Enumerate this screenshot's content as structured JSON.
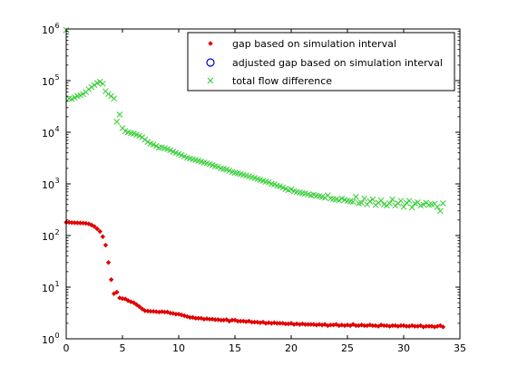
{
  "chart_data": {
    "type": "scatter",
    "title": "",
    "xlabel": "",
    "ylabel": "",
    "xlim": [
      0,
      35
    ],
    "ylim": [
      1,
      1000000
    ],
    "yscale": "log",
    "grid": false,
    "legend_position": "top-right",
    "x_ticks": [
      {
        "value": 0,
        "label": "0"
      },
      {
        "value": 5,
        "label": "5"
      },
      {
        "value": 10,
        "label": "10"
      },
      {
        "value": 15,
        "label": "15"
      },
      {
        "value": 20,
        "label": "20"
      },
      {
        "value": 25,
        "label": "25"
      },
      {
        "value": 30,
        "label": "30"
      },
      {
        "value": 35,
        "label": "35"
      }
    ],
    "y_ticks": [
      {
        "value": 1,
        "base": "10",
        "exponent": "0"
      },
      {
        "value": 10,
        "base": "10",
        "exponent": "1"
      },
      {
        "value": 100,
        "base": "10",
        "exponent": "2"
      },
      {
        "value": 1000,
        "base": "10",
        "exponent": "3"
      },
      {
        "value": 10000,
        "base": "10",
        "exponent": "4"
      },
      {
        "value": 100000,
        "base": "10",
        "exponent": "5"
      },
      {
        "value": 1000000,
        "base": "10",
        "exponent": "6"
      }
    ],
    "series": [
      {
        "name": "gap based on simulation interval",
        "marker": "diamond",
        "color": "#e00000",
        "x": [
          0.0,
          0.25,
          0.5,
          0.75,
          1.0,
          1.25,
          1.5,
          1.75,
          2.0,
          2.25,
          2.5,
          2.75,
          3.0,
          3.25,
          3.5,
          3.75,
          4.0,
          4.25,
          4.5,
          4.75,
          5.0,
          5.25,
          5.5,
          5.75,
          6.0,
          6.25,
          6.5,
          6.75,
          7.0,
          7.25,
          7.5,
          7.75,
          8.0,
          8.25,
          8.5,
          8.75,
          9.0,
          9.25,
          9.5,
          9.75,
          10.0,
          10.25,
          10.5,
          10.75,
          11.0,
          11.25,
          11.5,
          11.75,
          12.0,
          12.25,
          12.5,
          12.75,
          13.0,
          13.25,
          13.5,
          13.75,
          14.0,
          14.25,
          14.5,
          14.75,
          15.0,
          15.25,
          15.5,
          15.75,
          16.0,
          16.25,
          16.5,
          16.75,
          17.0,
          17.25,
          17.5,
          17.75,
          18.0,
          18.25,
          18.5,
          18.75,
          19.0,
          19.25,
          19.5,
          19.75,
          20.0,
          20.25,
          20.5,
          20.75,
          21.0,
          21.25,
          21.5,
          21.75,
          22.0,
          22.25,
          22.5,
          22.75,
          23.0,
          23.25,
          23.5,
          23.75,
          24.0,
          24.25,
          24.5,
          24.75,
          25.0,
          25.25,
          25.5,
          25.75,
          26.0,
          26.25,
          26.5,
          26.75,
          27.0,
          27.25,
          27.5,
          27.75,
          28.0,
          28.25,
          28.5,
          28.75,
          29.0,
          29.25,
          29.5,
          29.75,
          30.0,
          30.25,
          30.5,
          30.75,
          31.0,
          31.25,
          31.5,
          31.75,
          32.0,
          32.25,
          32.5,
          32.75,
          33.0,
          33.25,
          33.5
        ],
        "y": [
          180,
          180,
          178,
          177,
          176,
          175,
          174,
          172,
          168,
          160,
          150,
          135,
          120,
          95,
          65,
          30,
          14,
          7.5,
          8.0,
          6.2,
          6.0,
          5.9,
          5.5,
          5.2,
          5.0,
          4.6,
          4.2,
          3.8,
          3.5,
          3.45,
          3.4,
          3.4,
          3.35,
          3.3,
          3.35,
          3.3,
          3.3,
          3.15,
          3.1,
          3.0,
          3.0,
          2.9,
          2.8,
          2.7,
          2.6,
          2.6,
          2.5,
          2.5,
          2.5,
          2.4,
          2.45,
          2.4,
          2.4,
          2.35,
          2.35,
          2.3,
          2.3,
          2.35,
          2.2,
          2.3,
          2.3,
          2.2,
          2.2,
          2.2,
          2.15,
          2.2,
          2.1,
          2.1,
          2.1,
          2.05,
          2.1,
          2.0,
          2.05,
          2.0,
          2.05,
          2.0,
          2.0,
          2.0,
          1.95,
          1.95,
          2.0,
          1.9,
          1.95,
          1.9,
          1.95,
          1.9,
          1.9,
          1.9,
          1.9,
          1.85,
          1.9,
          1.85,
          1.9,
          1.8,
          1.85,
          1.85,
          1.9,
          1.8,
          1.85,
          1.8,
          1.85,
          1.8,
          1.9,
          1.8,
          1.8,
          1.85,
          1.8,
          1.8,
          1.85,
          1.8,
          1.8,
          1.75,
          1.85,
          1.8,
          1.8,
          1.75,
          1.8,
          1.8,
          1.75,
          1.8,
          1.8,
          1.75,
          1.75,
          1.8,
          1.75,
          1.75,
          1.8,
          1.7,
          1.75,
          1.75,
          1.75,
          1.7,
          1.75,
          1.8,
          1.7
        ]
      },
      {
        "name": "adjusted gap based on simulation interval",
        "marker": "circle",
        "color": "#0000cc",
        "x": [],
        "y": []
      },
      {
        "name": "total flow difference",
        "marker": "x",
        "color": "#33cc33",
        "x": [
          0.0,
          0.25,
          0.5,
          0.75,
          1.0,
          1.25,
          1.5,
          1.75,
          2.0,
          2.25,
          2.5,
          2.75,
          3.0,
          3.25,
          3.5,
          3.75,
          4.0,
          4.25,
          4.5,
          4.75,
          5.0,
          5.25,
          5.5,
          5.75,
          6.0,
          6.25,
          6.5,
          6.75,
          7.0,
          7.25,
          7.5,
          7.75,
          8.0,
          8.25,
          8.5,
          8.75,
          9.0,
          9.25,
          9.5,
          9.75,
          10.0,
          10.25,
          10.5,
          10.75,
          11.0,
          11.25,
          11.5,
          11.75,
          12.0,
          12.25,
          12.5,
          12.75,
          13.0,
          13.25,
          13.5,
          13.75,
          14.0,
          14.25,
          14.5,
          14.75,
          15.0,
          15.25,
          15.5,
          15.75,
          16.0,
          16.25,
          16.5,
          16.75,
          17.0,
          17.25,
          17.5,
          17.75,
          18.0,
          18.25,
          18.5,
          18.75,
          19.0,
          19.25,
          19.5,
          19.75,
          20.0,
          20.25,
          20.5,
          20.75,
          21.0,
          21.25,
          21.5,
          21.75,
          22.0,
          22.25,
          22.5,
          22.75,
          23.0,
          23.25,
          23.5,
          23.75,
          24.0,
          24.25,
          24.5,
          24.75,
          25.0,
          25.25,
          25.5,
          25.75,
          26.0,
          26.25,
          26.5,
          26.75,
          27.0,
          27.25,
          27.5,
          27.75,
          28.0,
          28.25,
          28.5,
          28.75,
          29.0,
          29.25,
          29.5,
          29.75,
          30.0,
          30.25,
          30.5,
          30.75,
          31.0,
          31.25,
          31.5,
          31.75,
          32.0,
          32.25,
          32.5,
          32.75,
          33.0,
          33.25,
          33.5
        ],
        "y": [
          950000,
          45000,
          44000,
          47000,
          50000,
          52000,
          55000,
          60000,
          68000,
          75000,
          82000,
          90000,
          95000,
          87000,
          62000,
          55000,
          50000,
          45000,
          16000,
          22000,
          12000,
          10500,
          10000,
          9600,
          9400,
          9000,
          8600,
          8000,
          7200,
          6500,
          6000,
          5800,
          5400,
          5000,
          5100,
          4900,
          4700,
          4500,
          4200,
          4000,
          3800,
          3600,
          3400,
          3200,
          3100,
          3000,
          2900,
          2800,
          2700,
          2600,
          2500,
          2400,
          2300,
          2200,
          2150,
          2000,
          1950,
          1900,
          1800,
          1700,
          1650,
          1600,
          1550,
          1500,
          1450,
          1400,
          1350,
          1300,
          1250,
          1200,
          1150,
          1100,
          1080,
          1000,
          980,
          920,
          900,
          850,
          800,
          760,
          780,
          720,
          700,
          680,
          660,
          650,
          630,
          600,
          620,
          590,
          580,
          560,
          540,
          600,
          520,
          510,
          500,
          480,
          520,
          490,
          470,
          460,
          450,
          560,
          420,
          430,
          520,
          400,
          460,
          500,
          390,
          430,
          480,
          400,
          380,
          420,
          500,
          380,
          420,
          470,
          360,
          430,
          470,
          350,
          420,
          440,
          380,
          400,
          430,
          390,
          400,
          410,
          360,
          300,
          420
        ]
      }
    ]
  }
}
